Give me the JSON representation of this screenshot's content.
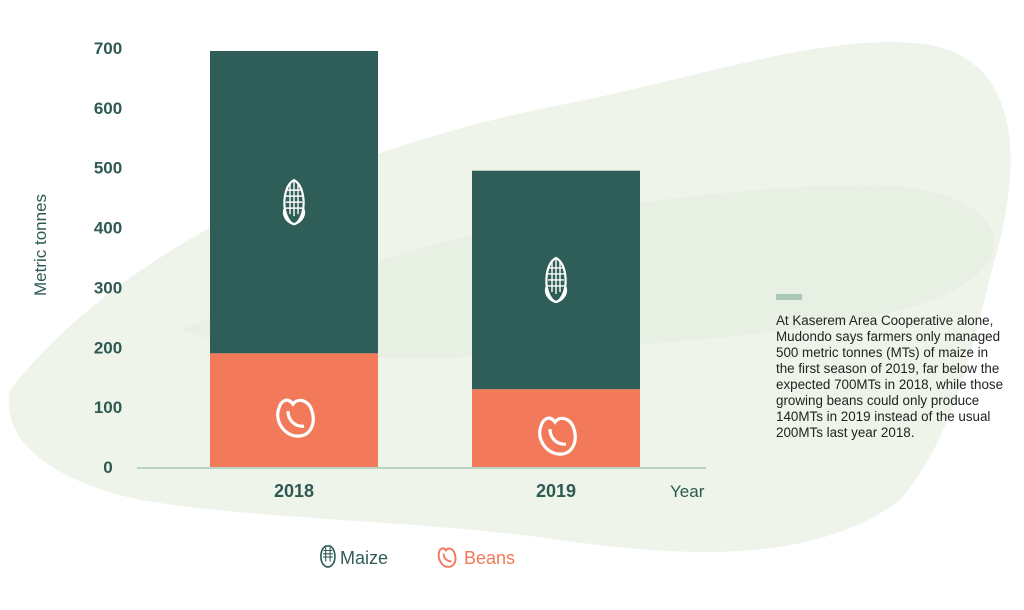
{
  "colors": {
    "maize": "#2f5d57",
    "beans": "#f2795a",
    "axis_text": "#2e5a53",
    "background_blob": "#eef4ea",
    "note_accent": "#a9c9b6"
  },
  "icons": {
    "maize": "corn-cob-icon",
    "beans": "bean-icon"
  },
  "legend": {
    "placement": "bottom-center",
    "items": [
      {
        "name": "Maize",
        "icon": "corn-cob-icon",
        "color": "#2f5d57"
      },
      {
        "name": "Beans",
        "icon": "bean-icon",
        "color": "#f2795a"
      }
    ]
  },
  "note": {
    "text": "At Kaserem Area Cooperative alone, Mudondo says farmers only managed 500 metric tonnes (MTs) of maize in the first season of 2019, far below the expected 700MTs in 2018, while those growing beans could only produce 140MTs in 2019 instead of the usual 200MTs last year 2018."
  },
  "chart_data": {
    "type": "bar",
    "stacked": true,
    "title": "",
    "xlabel": "Year",
    "ylabel": "Metric tonnes",
    "categories": [
      "2018",
      "2019"
    ],
    "series": [
      {
        "name": "Beans",
        "values": [
          190,
          130
        ]
      },
      {
        "name": "Maize",
        "values": [
          505,
          365
        ]
      }
    ],
    "ylim": [
      0,
      700
    ],
    "yticks": [
      0,
      100,
      200,
      300,
      400,
      500,
      600,
      700
    ],
    "grid": false
  }
}
